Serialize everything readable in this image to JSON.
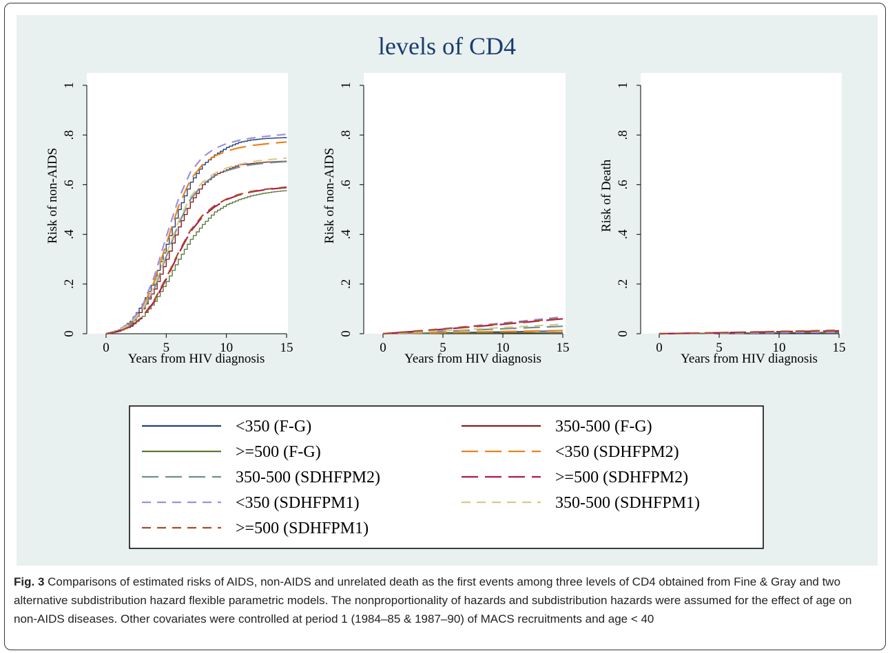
{
  "chart_data": {
    "title": "levels of CD4",
    "type": "line",
    "panels": [
      {
        "ylabel": "Risk of non-AIDS",
        "xlabel": "Years from HIV diagnosis",
        "xlim": [
          0,
          15
        ],
        "ylim": [
          0,
          1
        ],
        "xticks": [
          "0",
          "5",
          "10",
          "15"
        ],
        "yticks": [
          "0",
          ".2",
          ".4",
          ".6",
          ".8",
          "1"
        ],
        "series": [
          {
            "id": "fg350",
            "x": [
              0,
              1,
              2,
              3,
              4,
              5,
              6,
              7,
              8,
              9,
              10,
              11,
              12,
              13,
              14,
              15
            ],
            "y": [
              0,
              0.015,
              0.05,
              0.12,
              0.22,
              0.36,
              0.5,
              0.61,
              0.68,
              0.72,
              0.75,
              0.77,
              0.78,
              0.785,
              0.788,
              0.79
            ]
          },
          {
            "id": "fg350500",
            "x": [
              0,
              1,
              2,
              3,
              4,
              5,
              6,
              7,
              8,
              9,
              10,
              11,
              12,
              13,
              14,
              15
            ],
            "y": [
              0,
              0.012,
              0.04,
              0.1,
              0.18,
              0.3,
              0.43,
              0.53,
              0.6,
              0.64,
              0.66,
              0.68,
              0.685,
              0.69,
              0.693,
              0.695
            ]
          },
          {
            "id": "fg500",
            "x": [
              0,
              1,
              2,
              3,
              4,
              5,
              6,
              7,
              8,
              9,
              10,
              11,
              12,
              13,
              14,
              15
            ],
            "y": [
              0,
              0.01,
              0.03,
              0.07,
              0.13,
              0.21,
              0.3,
              0.38,
              0.44,
              0.49,
              0.52,
              0.54,
              0.555,
              0.565,
              0.572,
              0.577
            ]
          },
          {
            "id": "m2_350",
            "x": [
              0,
              1,
              2,
              3,
              4,
              5,
              6,
              7,
              8,
              9,
              10,
              11,
              12,
              13,
              14,
              15
            ],
            "y": [
              0,
              0.012,
              0.04,
              0.1,
              0.21,
              0.36,
              0.51,
              0.62,
              0.68,
              0.715,
              0.735,
              0.748,
              0.757,
              0.763,
              0.768,
              0.772
            ]
          },
          {
            "id": "m2_350500",
            "x": [
              0,
              1,
              2,
              3,
              4,
              5,
              6,
              7,
              8,
              9,
              10,
              11,
              12,
              13,
              14,
              15
            ],
            "y": [
              0,
              0.011,
              0.035,
              0.09,
              0.18,
              0.31,
              0.44,
              0.54,
              0.6,
              0.635,
              0.656,
              0.67,
              0.68,
              0.686,
              0.69,
              0.693
            ]
          },
          {
            "id": "m2_500",
            "x": [
              0,
              1,
              2,
              3,
              4,
              5,
              6,
              7,
              8,
              9,
              10,
              11,
              12,
              13,
              14,
              15
            ],
            "y": [
              0,
              0.009,
              0.027,
              0.065,
              0.13,
              0.22,
              0.32,
              0.41,
              0.47,
              0.51,
              0.54,
              0.558,
              0.57,
              0.578,
              0.584,
              0.588
            ]
          },
          {
            "id": "m1_350",
            "x": [
              0,
              1,
              2,
              3,
              4,
              5,
              6,
              7,
              8,
              9,
              10,
              11,
              12,
              13,
              14,
              15
            ],
            "y": [
              0,
              0.014,
              0.045,
              0.11,
              0.23,
              0.39,
              0.54,
              0.65,
              0.71,
              0.745,
              0.765,
              0.778,
              0.787,
              0.793,
              0.798,
              0.803
            ]
          },
          {
            "id": "m1_350500",
            "x": [
              0,
              1,
              2,
              3,
              4,
              5,
              6,
              7,
              8,
              9,
              10,
              11,
              12,
              13,
              14,
              15
            ],
            "y": [
              0,
              0.012,
              0.038,
              0.095,
              0.19,
              0.32,
              0.45,
              0.55,
              0.61,
              0.645,
              0.667,
              0.681,
              0.691,
              0.698,
              0.703,
              0.707
            ]
          },
          {
            "id": "m1_500",
            "x": [
              0,
              1,
              2,
              3,
              4,
              5,
              6,
              7,
              8,
              9,
              10,
              11,
              12,
              13,
              14,
              15
            ],
            "y": [
              0,
              0.009,
              0.028,
              0.067,
              0.135,
              0.225,
              0.325,
              0.415,
              0.475,
              0.515,
              0.542,
              0.56,
              0.572,
              0.58,
              0.586,
              0.59
            ]
          }
        ]
      },
      {
        "ylabel": "Risk of non-AIDS",
        "xlabel": "Years from HIV diagnosis",
        "xlim": [
          0,
          15
        ],
        "ylim": [
          0,
          1
        ],
        "xticks": [
          "0",
          "5",
          "10",
          "15"
        ],
        "yticks": [
          "0",
          ".2",
          ".4",
          ".6",
          ".8",
          "1"
        ],
        "series": [
          {
            "id": "fg350",
            "x": [
              0,
              5,
              10,
              15
            ],
            "y": [
              0,
              0.004,
              0.008,
              0.012
            ]
          },
          {
            "id": "fg350500",
            "x": [
              0,
              5,
              10,
              15
            ],
            "y": [
              0,
              0.002,
              0.004,
              0.005
            ]
          },
          {
            "id": "fg500",
            "x": [
              0,
              5,
              10,
              15
            ],
            "y": [
              0,
              0.002,
              0.003,
              0.004
            ]
          },
          {
            "id": "m2_350",
            "x": [
              0,
              5,
              10,
              15
            ],
            "y": [
              0,
              0.005,
              0.009,
              0.013
            ]
          },
          {
            "id": "m2_350500",
            "x": [
              0,
              5,
              10,
              15
            ],
            "y": [
              0,
              0.01,
              0.02,
              0.03
            ]
          },
          {
            "id": "m2_500",
            "x": [
              0,
              5,
              10,
              15
            ],
            "y": [
              0,
              0.018,
              0.038,
              0.06
            ]
          },
          {
            "id": "m1_350",
            "x": [
              0,
              5,
              10,
              15
            ],
            "y": [
              0,
              0.02,
              0.043,
              0.068
            ]
          },
          {
            "id": "m1_350500",
            "x": [
              0,
              5,
              10,
              15
            ],
            "y": [
              0,
              0.012,
              0.025,
              0.038
            ]
          },
          {
            "id": "m1_500",
            "x": [
              0,
              5,
              10,
              15
            ],
            "y": [
              0,
              0.019,
              0.04,
              0.062
            ]
          }
        ]
      },
      {
        "ylabel": "Risk of Death",
        "xlabel": "Years from HIV diagnosis",
        "xlim": [
          0,
          15
        ],
        "ylim": [
          0,
          1
        ],
        "xticks": [
          "0",
          "5",
          "10",
          "15"
        ],
        "yticks": [
          "0",
          ".2",
          ".4",
          ".6",
          ".8",
          "1"
        ],
        "series": [
          {
            "id": "fg350",
            "x": [
              0,
              5,
              10,
              15
            ],
            "y": [
              0,
              0.002,
              0.004,
              0.006
            ]
          },
          {
            "id": "fg350500",
            "x": [
              0,
              5,
              10,
              15
            ],
            "y": [
              0,
              0.002,
              0.004,
              0.005
            ]
          },
          {
            "id": "fg500",
            "x": [
              0,
              5,
              10,
              15
            ],
            "y": [
              0,
              0.002,
              0.003,
              0.004
            ]
          },
          {
            "id": "m2_350",
            "x": [
              0,
              5,
              10,
              15
            ],
            "y": [
              0,
              0.004,
              0.008,
              0.012
            ]
          },
          {
            "id": "m2_350500",
            "x": [
              0,
              5,
              10,
              15
            ],
            "y": [
              0,
              0.003,
              0.006,
              0.009
            ]
          },
          {
            "id": "m2_500",
            "x": [
              0,
              5,
              10,
              15
            ],
            "y": [
              0,
              0.004,
              0.008,
              0.011
            ]
          },
          {
            "id": "m1_350",
            "x": [
              0,
              5,
              10,
              15
            ],
            "y": [
              0,
              0.002,
              0.004,
              0.006
            ]
          },
          {
            "id": "m1_350500",
            "x": [
              0,
              5,
              10,
              15
            ],
            "y": [
              0,
              0.005,
              0.01,
              0.015
            ]
          },
          {
            "id": "m1_500",
            "x": [
              0,
              5,
              10,
              15
            ],
            "y": [
              0,
              0.004,
              0.009,
              0.013
            ]
          }
        ]
      }
    ],
    "legend": [
      {
        "id": "fg350",
        "label": "<350 (F-G)",
        "color": "#1f3f7a",
        "dash": "solid",
        "step": true
      },
      {
        "id": "fg350500",
        "label": "350-500 (F-G)",
        "color": "#8b1a1a",
        "dash": "solid",
        "step": true
      },
      {
        "id": "fg500",
        "label": ">=500 (F-G)",
        "color": "#5a7a3a",
        "dash": "solid",
        "step": true
      },
      {
        "id": "m2_350",
        "label": "<350 (SDHFPM2)",
        "color": "#e8831a",
        "dash": "long",
        "step": false
      },
      {
        "id": "m2_350500",
        "label": "350-500 (SDHFPM2)",
        "color": "#6b8f8f",
        "dash": "long",
        "step": false
      },
      {
        "id": "m2_500",
        "label": ">=500 (SDHFPM2)",
        "color": "#b0174f",
        "dash": "long",
        "step": false
      },
      {
        "id": "m1_350",
        "label": "<350 (SDHFPM1)",
        "color": "#9d8fe0",
        "dash": "short",
        "step": false
      },
      {
        "id": "m1_350500",
        "label": "350-500 (SDHFPM1)",
        "color": "#d8c98a",
        "dash": "short",
        "step": false
      },
      {
        "id": "m1_500",
        "label": ">=500 (SDHFPM1)",
        "color": "#a84a2a",
        "dash": "short",
        "step": false
      }
    ]
  },
  "caption": {
    "label": "Fig. 3",
    "text": " Comparisons of estimated risks of AIDS, non-AIDS and unrelated death as the first events among three levels of CD4 obtained from Fine & Gray and two alternative subdistribution hazard flexible parametric models. The nonproportionality of hazards and subdistribution hazards were assumed for the effect of age on non-AIDS diseases. Other covariates were controlled at period 1 (1984–85 & 1987–90) of MACS recruitments and age < 40"
  }
}
